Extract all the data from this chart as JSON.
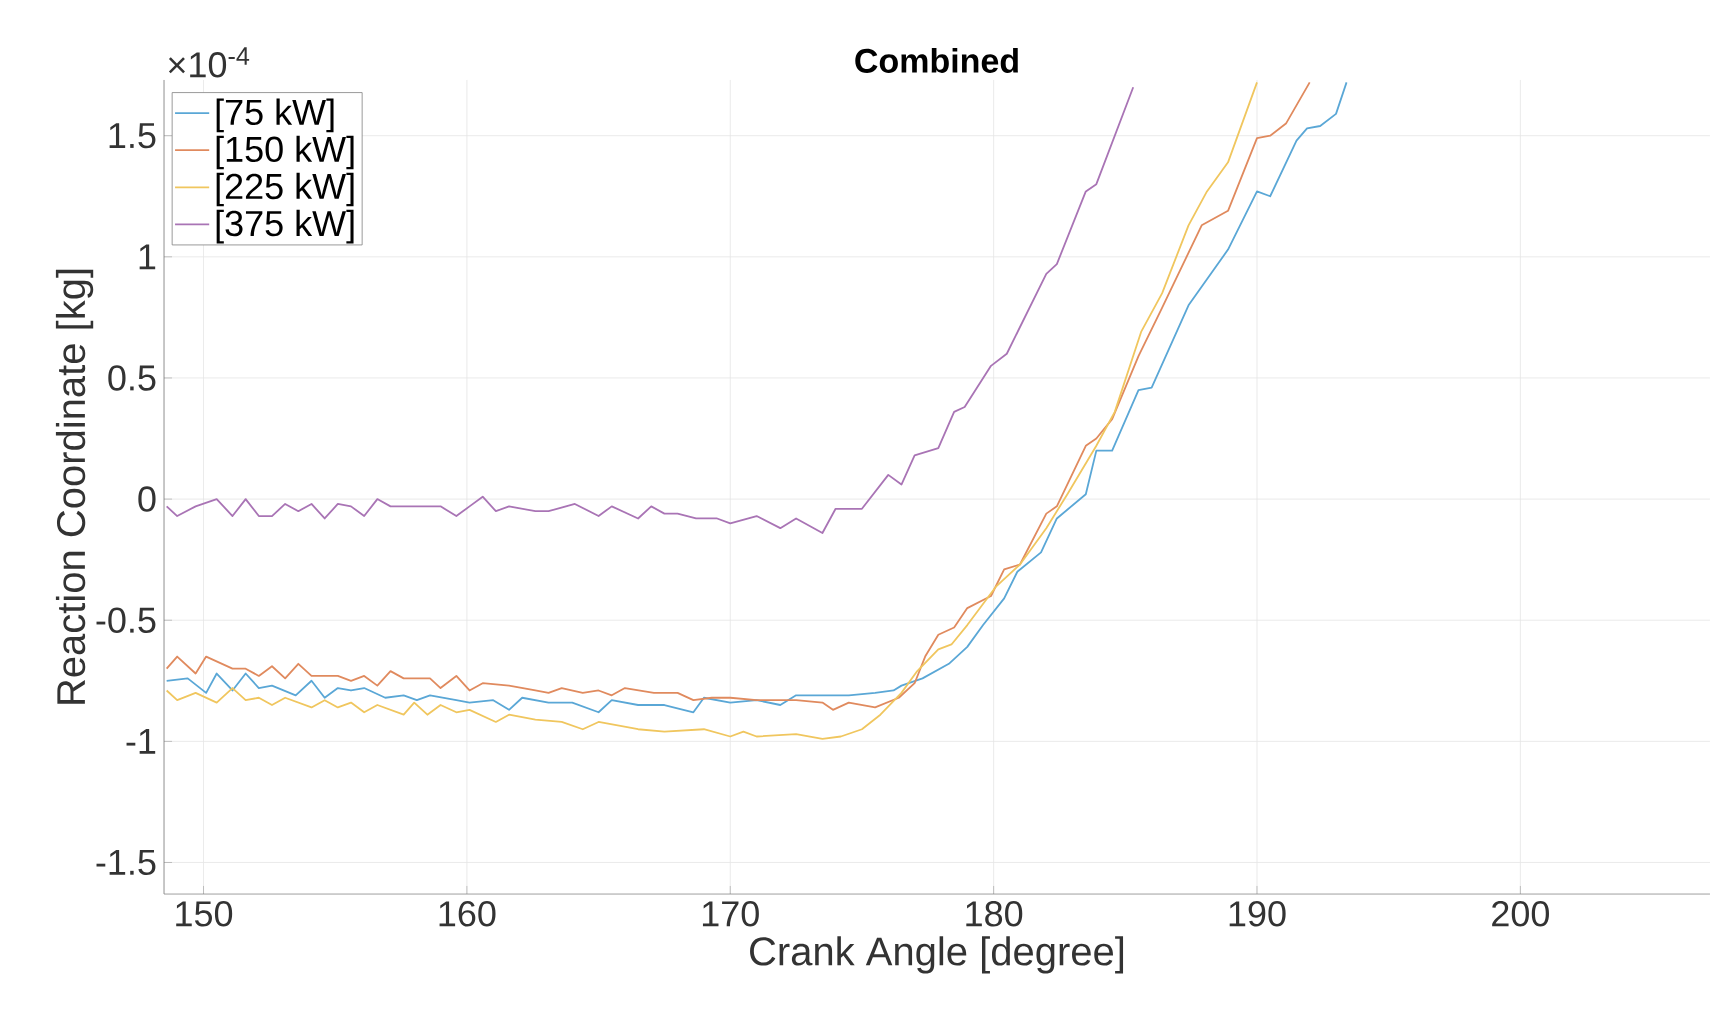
{
  "chart_data": {
    "type": "line",
    "title": "Combined",
    "xlabel": "Crank Angle [degree]",
    "ylabel": "Reaction Coordinate [kg]",
    "annotations": [
      "×10$^{-4}$"
    ],
    "xlim": [
      148.5,
      207.2
    ],
    "ylim": [
      -1.63,
      1.73
    ],
    "xticks": [
      150,
      160,
      170,
      180,
      190,
      200
    ],
    "yticks": [
      -1.5,
      -1,
      -0.5,
      0,
      0.5,
      1,
      1.5
    ],
    "grid": true,
    "legend": "top left",
    "line_style": "solid",
    "marker": "none",
    "series": [
      {
        "name": "[75 kW]",
        "color": "#5aa7d6",
        "x": [
          148.6,
          149.4,
          150.1,
          150.5,
          151.1,
          151.6,
          152.1,
          152.6,
          153.5,
          154.1,
          154.6,
          155.1,
          155.6,
          156.1,
          156.9,
          157.6,
          158.1,
          158.6,
          159.6,
          160.1,
          161.0,
          161.6,
          162.1,
          163.1,
          164.0,
          165.0,
          165.5,
          166.5,
          167.5,
          168.6,
          169.0,
          170.0,
          171.0,
          171.9,
          172.5,
          173.5,
          174.5,
          175.5,
          176.2,
          176.5,
          177.3,
          178.3,
          179.0,
          179.6,
          180.4,
          180.9,
          181.8,
          182.4,
          183.5,
          183.9,
          184.5,
          185.5,
          186.0,
          187.4,
          188.9,
          190.0,
          190.5,
          191.5,
          191.9,
          192.4,
          193.0,
          193.4
        ],
        "values": [
          -0.75,
          -0.74,
          -0.8,
          -0.72,
          -0.79,
          -0.72,
          -0.78,
          -0.77,
          -0.81,
          -0.75,
          -0.82,
          -0.78,
          -0.79,
          -0.78,
          -0.82,
          -0.81,
          -0.83,
          -0.81,
          -0.83,
          -0.84,
          -0.83,
          -0.87,
          -0.82,
          -0.84,
          -0.84,
          -0.88,
          -0.83,
          -0.85,
          -0.85,
          -0.88,
          -0.82,
          -0.84,
          -0.83,
          -0.85,
          -0.81,
          -0.81,
          -0.81,
          -0.8,
          -0.79,
          -0.77,
          -0.74,
          -0.68,
          -0.61,
          -0.52,
          -0.41,
          -0.3,
          -0.22,
          -0.08,
          0.02,
          0.2,
          0.2,
          0.45,
          0.46,
          0.8,
          1.03,
          1.27,
          1.25,
          1.48,
          1.53,
          1.54,
          1.59,
          1.72
        ]
      },
      {
        "name": "[150 kW]",
        "color": "#e08a5e",
        "x": [
          148.6,
          149.0,
          149.7,
          150.1,
          151.1,
          151.6,
          152.1,
          152.6,
          153.1,
          153.6,
          154.1,
          155.1,
          155.6,
          156.1,
          156.6,
          157.1,
          157.6,
          158.6,
          159.0,
          159.6,
          160.1,
          160.6,
          161.6,
          162.6,
          163.1,
          163.6,
          164.4,
          165.0,
          165.5,
          166.0,
          167.1,
          168.0,
          168.6,
          169.3,
          170.0,
          171.0,
          172.5,
          173.5,
          173.9,
          174.5,
          175.5,
          176.4,
          177.0,
          177.4,
          177.9,
          178.5,
          179.0,
          179.9,
          180.4,
          181.0,
          182.0,
          182.4,
          183.5,
          183.9,
          184.5,
          185.5,
          186.4,
          187.9,
          188.9,
          190.0,
          190.5,
          191.1,
          192.0
        ],
        "values": [
          -0.7,
          -0.65,
          -0.72,
          -0.65,
          -0.7,
          -0.7,
          -0.73,
          -0.69,
          -0.74,
          -0.68,
          -0.73,
          -0.73,
          -0.75,
          -0.73,
          -0.77,
          -0.71,
          -0.74,
          -0.74,
          -0.78,
          -0.73,
          -0.79,
          -0.76,
          -0.77,
          -0.79,
          -0.8,
          -0.78,
          -0.8,
          -0.79,
          -0.81,
          -0.78,
          -0.8,
          -0.8,
          -0.83,
          -0.82,
          -0.82,
          -0.83,
          -0.83,
          -0.84,
          -0.87,
          -0.84,
          -0.86,
          -0.82,
          -0.76,
          -0.65,
          -0.56,
          -0.53,
          -0.45,
          -0.4,
          -0.29,
          -0.27,
          -0.06,
          -0.03,
          0.22,
          0.25,
          0.33,
          0.59,
          0.79,
          1.13,
          1.19,
          1.49,
          1.5,
          1.55,
          1.72
        ]
      },
      {
        "name": "[225 kW]",
        "color": "#f0c65e",
        "x": [
          148.6,
          149.0,
          149.7,
          150.5,
          151.1,
          151.6,
          152.1,
          152.6,
          153.1,
          154.1,
          154.6,
          155.1,
          155.6,
          156.1,
          156.6,
          157.6,
          158.0,
          158.5,
          159.0,
          159.6,
          160.1,
          161.1,
          161.6,
          162.6,
          163.6,
          164.4,
          165.0,
          166.5,
          167.5,
          169.0,
          170.0,
          170.5,
          171.0,
          172.5,
          173.5,
          174.2,
          175.0,
          175.7,
          176.5,
          177.1,
          177.9,
          178.4,
          179.0,
          180.1,
          181.0,
          182.0,
          182.8,
          183.9,
          184.6,
          185.6,
          186.4,
          187.4,
          188.1,
          188.9,
          190.0
        ],
        "values": [
          -0.79,
          -0.83,
          -0.8,
          -0.84,
          -0.78,
          -0.83,
          -0.82,
          -0.85,
          -0.82,
          -0.86,
          -0.83,
          -0.86,
          -0.84,
          -0.88,
          -0.85,
          -0.89,
          -0.84,
          -0.89,
          -0.85,
          -0.88,
          -0.87,
          -0.92,
          -0.89,
          -0.91,
          -0.92,
          -0.95,
          -0.92,
          -0.95,
          -0.96,
          -0.95,
          -0.98,
          -0.96,
          -0.98,
          -0.97,
          -0.99,
          -0.98,
          -0.95,
          -0.89,
          -0.8,
          -0.71,
          -0.62,
          -0.6,
          -0.52,
          -0.36,
          -0.27,
          -0.12,
          0.02,
          0.22,
          0.36,
          0.69,
          0.85,
          1.13,
          1.27,
          1.39,
          1.72
        ]
      },
      {
        "name": "[375 kW]",
        "color": "#a974b5",
        "x": [
          148.6,
          149.0,
          149.7,
          150.5,
          151.1,
          151.6,
          152.1,
          152.6,
          153.1,
          153.6,
          154.1,
          154.6,
          155.1,
          155.6,
          156.1,
          156.6,
          157.1,
          158.1,
          159.0,
          159.6,
          160.1,
          160.6,
          161.1,
          161.6,
          162.6,
          163.1,
          164.1,
          165.0,
          165.5,
          166.5,
          167.0,
          167.5,
          168.0,
          168.7,
          169.5,
          170.0,
          171.0,
          171.9,
          172.5,
          173.5,
          174.0,
          175.0,
          176.0,
          176.5,
          177.0,
          177.9,
          178.5,
          178.9,
          179.9,
          180.5,
          182.0,
          182.4,
          183.5,
          183.9,
          185.3
        ],
        "values": [
          -0.03,
          -0.07,
          -0.03,
          0.0,
          -0.07,
          0.0,
          -0.07,
          -0.07,
          -0.02,
          -0.05,
          -0.02,
          -0.08,
          -0.02,
          -0.03,
          -0.07,
          0.0,
          -0.03,
          -0.03,
          -0.03,
          -0.07,
          -0.03,
          0.01,
          -0.05,
          -0.03,
          -0.05,
          -0.05,
          -0.02,
          -0.07,
          -0.03,
          -0.08,
          -0.03,
          -0.06,
          -0.06,
          -0.08,
          -0.08,
          -0.1,
          -0.07,
          -0.12,
          -0.08,
          -0.14,
          -0.04,
          -0.04,
          0.1,
          0.06,
          0.18,
          0.21,
          0.36,
          0.38,
          0.55,
          0.6,
          0.93,
          0.97,
          1.27,
          1.3,
          1.7
        ]
      }
    ]
  }
}
